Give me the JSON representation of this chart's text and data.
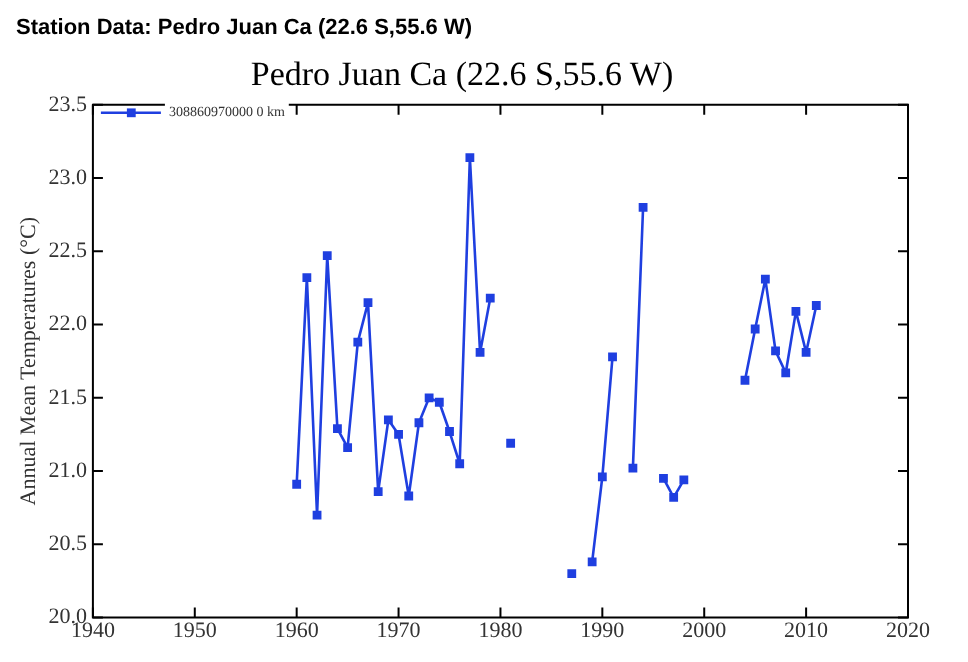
{
  "chart_data": {
    "type": "line",
    "title": "Pedro Juan Ca (22.6 S,55.6 W)",
    "subtitle": "Station Data: Pedro Juan Ca (22.6 S,55.6 W)",
    "ylabel": "Annual Mean Temperatures (°C)",
    "x": [
      1960,
      1961,
      1962,
      1963,
      1964,
      1965,
      1966,
      1967,
      1968,
      1969,
      1970,
      1971,
      1972,
      1973,
      1974,
      1975,
      1976,
      1977,
      1978,
      1979,
      1980,
      1981,
      1982,
      1987,
      1988,
      1989,
      1990,
      1991,
      1992,
      1993,
      1994,
      1995,
      1996,
      1997,
      1998,
      1999,
      2004,
      2005,
      2006,
      2007,
      2008,
      2009,
      2010,
      2011
    ],
    "series": [
      {
        "name": "308860970000 0 km",
        "color": "#1f3fe0",
        "values": [
          20.91,
          22.32,
          20.7,
          22.47,
          21.29,
          21.16,
          21.88,
          22.15,
          20.86,
          21.35,
          21.25,
          20.83,
          21.33,
          21.5,
          21.47,
          21.27,
          21.05,
          23.14,
          21.81,
          22.18,
          null,
          21.19,
          null,
          20.3,
          null,
          20.38,
          20.96,
          21.78,
          null,
          21.02,
          22.8,
          null,
          20.95,
          20.82,
          20.94,
          null,
          21.62,
          21.97,
          22.31,
          21.82,
          21.67,
          22.09,
          21.81,
          22.13
        ]
      }
    ],
    "xlim": [
      1940,
      2020
    ],
    "xticks": [
      1940,
      1950,
      1960,
      1970,
      1980,
      1990,
      2000,
      2010,
      2020
    ],
    "ylim": [
      20,
      23.5
    ],
    "yticks": [
      {
        "value": 20,
        "label": "20.0"
      },
      {
        "value": 20.5,
        "label": "20.5"
      },
      {
        "value": 21,
        "label": "21.0"
      },
      {
        "value": 21.5,
        "label": "21.5"
      },
      {
        "value": 22,
        "label": "22.0"
      },
      {
        "value": 22.5,
        "label": "22.5"
      },
      {
        "value": 23,
        "label": "23.0"
      },
      {
        "value": 23.5,
        "label": "23.5"
      }
    ],
    "grid": false,
    "legend": "top left",
    "marker": "square",
    "line_style": "solid"
  }
}
